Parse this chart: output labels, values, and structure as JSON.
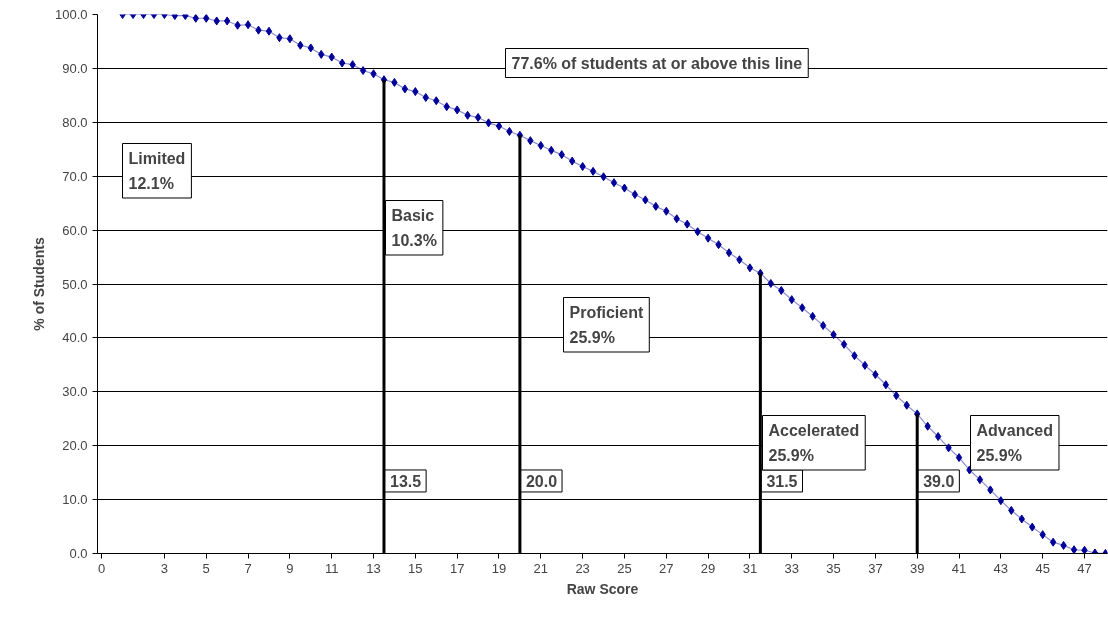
{
  "chart_data": {
    "type": "line",
    "xlabel": "Raw Score",
    "ylabel": "% of Students",
    "x": [
      1,
      1.5,
      2,
      2.5,
      3,
      3.5,
      4,
      4.5,
      5,
      5.5,
      6,
      6.5,
      7,
      7.5,
      8,
      8.5,
      9,
      9.5,
      10,
      10.5,
      11,
      11.5,
      12,
      12.5,
      13,
      13.5,
      14,
      14.5,
      15,
      15.5,
      16,
      16.5,
      17,
      17.5,
      18,
      18.5,
      19,
      19.5,
      20,
      20.5,
      21,
      21.5,
      22,
      22.5,
      23,
      23.5,
      24,
      24.5,
      25,
      25.5,
      26,
      26.5,
      27,
      27.5,
      28,
      28.5,
      29,
      29.5,
      30,
      30.5,
      31,
      31.5,
      32,
      32.5,
      33,
      33.5,
      34,
      34.5,
      35,
      35.5,
      36,
      36.5,
      37,
      37.5,
      38,
      38.5,
      39,
      39.5,
      40,
      40.5,
      41,
      41.5,
      42,
      42.5,
      43,
      43.5,
      44,
      44.5,
      45,
      45.5,
      46,
      46.5,
      47,
      47.5,
      48
    ],
    "series": [
      {
        "color": "#000099",
        "values": [
          100,
          100,
          100,
          100,
          100,
          99.8,
          99.8,
          99.3,
          99.3,
          98.8,
          98.8,
          98.0,
          98.1,
          97.1,
          96.9,
          95.7,
          95.5,
          94.3,
          93.8,
          92.6,
          92.1,
          91.0,
          90.7,
          89.6,
          89.0,
          87.9,
          87.4,
          86.2,
          85.7,
          84.6,
          84.0,
          82.9,
          82.3,
          81.3,
          80.9,
          79.9,
          79.3,
          78.3,
          77.6,
          76.6,
          75.7,
          74.8,
          74.0,
          72.8,
          71.8,
          70.9,
          69.9,
          68.8,
          67.8,
          66.6,
          65.6,
          64.4,
          63.5,
          62.1,
          61.1,
          59.7,
          58.5,
          57.3,
          55.8,
          54.5,
          53.0,
          52.0,
          50.1,
          48.8,
          47.1,
          45.6,
          44.0,
          42.3,
          40.6,
          38.8,
          36.7,
          34.9,
          33.2,
          31.3,
          29.3,
          27.5,
          25.9,
          23.6,
          21.7,
          19.6,
          17.8,
          15.5,
          13.7,
          11.8,
          9.8,
          8.0,
          6.4,
          4.9,
          3.5,
          2.1,
          1.5,
          0.7,
          0.6,
          0.1,
          0
        ]
      }
    ],
    "marker": "diamond",
    "line_style": "solid",
    "grid": "y",
    "xlim": [
      -0.2,
      48.1
    ],
    "xticks": [
      0,
      3,
      5,
      7,
      9,
      11,
      13,
      15,
      17,
      19,
      21,
      23,
      25,
      27,
      29,
      31,
      33,
      35,
      37,
      39,
      41,
      43,
      45,
      47
    ],
    "ylim": [
      0,
      100
    ],
    "yticks": [
      {
        "value": 0,
        "label": "0.0"
      },
      {
        "value": 10,
        "label": "10.0"
      },
      {
        "value": 20,
        "label": "20.0"
      },
      {
        "value": 30,
        "label": "30.0"
      },
      {
        "value": 40,
        "label": "40.0"
      },
      {
        "value": 50,
        "label": "50.0"
      },
      {
        "value": 60,
        "label": "60.0"
      },
      {
        "value": 70,
        "label": "70.0"
      },
      {
        "value": 80,
        "label": "80.0"
      },
      {
        "value": 90,
        "label": "90.0"
      },
      {
        "value": 100,
        "label": "100.0"
      }
    ],
    "ref_lines": [
      {
        "axis": "x",
        "value": 13.5,
        "label": "13.5",
        "color": "#000000"
      },
      {
        "axis": "x",
        "value": 20.0,
        "label": "20.0",
        "color": "#000000"
      },
      {
        "axis": "x",
        "value": 31.5,
        "label": "31.5",
        "color": "#000000"
      },
      {
        "axis": "x",
        "value": 39.0,
        "label": "39.0",
        "color": "#000000"
      }
    ],
    "annotations": [
      "77.6% of students at or above this line",
      "Limited\n12.1%",
      "Basic\n10.3%",
      "Proficient\n25.9%",
      "Accelerated\n25.9%",
      "Advanced\n25.9%"
    ]
  }
}
